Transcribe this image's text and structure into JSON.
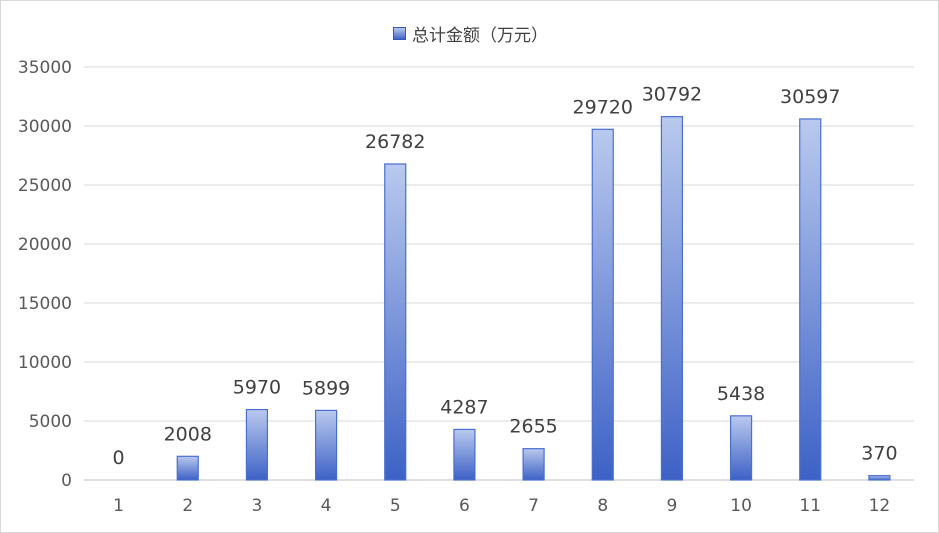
{
  "chart_data": {
    "type": "bar",
    "categories": [
      "1",
      "2",
      "3",
      "4",
      "5",
      "6",
      "7",
      "8",
      "9",
      "10",
      "11",
      "12"
    ],
    "series": [
      {
        "name": "总计金额（万元）",
        "values": [
          0,
          2008,
          5970,
          5899,
          26782,
          4287,
          2655,
          29720,
          30792,
          5438,
          30597,
          370
        ]
      }
    ],
    "y_ticks": [
      "0",
      "5000",
      "10000",
      "15000",
      "20000",
      "25000",
      "30000",
      "35000"
    ],
    "ylim": [
      0,
      35000
    ],
    "grid": true,
    "legend_position": "top-center",
    "bar_color": "#4a6fcf"
  }
}
